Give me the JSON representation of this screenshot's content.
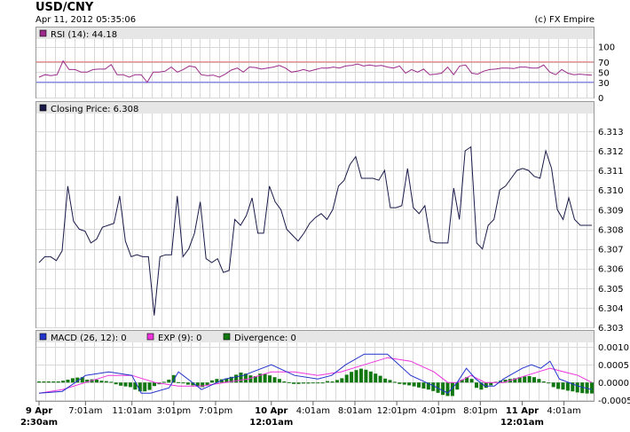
{
  "header": {
    "title": "USD/CNY",
    "date": "Apr 11, 2012 05:35:06",
    "copyright": "(c) FX Empire"
  },
  "colors": {
    "price_line": "#1a1a4a",
    "rsi_line": "#9b2a8a",
    "rsi_high_line": "#e06666",
    "rsi_low_line": "#6666ee",
    "macd_line": "#2233cc",
    "exp_line": "#ee33dd",
    "divergence": "#117711",
    "panel_header_bg": "#e6e6e6",
    "grid": "#d8d8d8"
  },
  "chart_data": [
    {
      "type": "line",
      "panel": "rsi",
      "legend": "RSI (14): 44.18",
      "legend_swatch": "#9b2a8a",
      "yticks": [
        "100",
        "70",
        "50",
        "30",
        "0"
      ],
      "ytick_values": [
        100,
        70,
        50,
        30,
        0
      ],
      "ylim": [
        0,
        115
      ],
      "reference_lines": [
        70,
        30
      ],
      "values": [
        40,
        45,
        43,
        45,
        72,
        55,
        55,
        50,
        50,
        55,
        56,
        56,
        65,
        45,
        45,
        40,
        45,
        45,
        30,
        50,
        50,
        52,
        60,
        50,
        55,
        62,
        60,
        45,
        43,
        44,
        40,
        46,
        54,
        58,
        50,
        60,
        59,
        56,
        58,
        60,
        63,
        58,
        50,
        52,
        55,
        52,
        55,
        58,
        58,
        60,
        58,
        62,
        63,
        66,
        62,
        64,
        62,
        63,
        60,
        58,
        62,
        48,
        55,
        50,
        56,
        45,
        46,
        48,
        60,
        45,
        62,
        64,
        48,
        46,
        52,
        55,
        56,
        58,
        58,
        57,
        60,
        60,
        58,
        58,
        64,
        50,
        45,
        55,
        48,
        45,
        46,
        45,
        44
      ]
    },
    {
      "type": "line",
      "panel": "price",
      "legend": "Closing Price: 6.308",
      "legend_swatch": "#1a1a4a",
      "yticks": [
        "6.313",
        "6.312",
        "6.311",
        "6.310",
        "6.309",
        "6.308",
        "6.307",
        "6.306",
        "6.305",
        "6.304",
        "6.303"
      ],
      "ylim": [
        6.303,
        6.3139
      ],
      "values": [
        6.3063,
        6.3066,
        6.3066,
        6.3064,
        6.3069,
        6.3102,
        6.3084,
        6.308,
        6.3079,
        6.3073,
        6.3075,
        6.3081,
        6.3082,
        6.3083,
        6.3097,
        6.3074,
        6.3066,
        6.3067,
        6.3066,
        6.3066,
        6.3036,
        6.3066,
        6.3067,
        6.3067,
        6.3097,
        6.3066,
        6.307,
        6.3078,
        6.3094,
        6.3065,
        6.3063,
        6.3065,
        6.3058,
        6.3059,
        6.3085,
        6.3082,
        6.3087,
        6.3096,
        6.3078,
        6.3078,
        6.3102,
        6.3094,
        6.309,
        6.308,
        6.3077,
        6.3074,
        6.3078,
        6.3083,
        6.3086,
        6.3088,
        6.3085,
        6.309,
        6.3102,
        6.3105,
        6.3113,
        6.3117,
        6.3106,
        6.3106,
        6.3106,
        6.3105,
        6.311,
        6.3091,
        6.3091,
        6.3092,
        6.3111,
        6.3091,
        6.3088,
        6.3092,
        6.3074,
        6.3073,
        6.3073,
        6.3073,
        6.3101,
        6.3085,
        6.312,
        6.3122,
        6.3073,
        6.307,
        6.3082,
        6.3085,
        6.31,
        6.3102,
        6.3106,
        6.311,
        6.3111,
        6.311,
        6.3107,
        6.3106,
        6.312,
        6.3111,
        6.309,
        6.3085,
        6.3096,
        6.3085,
        6.3082,
        6.3082,
        6.3082
      ]
    },
    {
      "type": "line",
      "panel": "macd",
      "legend_items": [
        {
          "label": "MACD (26, 12): 0",
          "color": "#2233cc"
        },
        {
          "label": "EXP (9): 0",
          "color": "#ee33dd"
        },
        {
          "label": "Divergence: 0",
          "color": "#117711"
        }
      ],
      "yticks": [
        "0.0010",
        "0.0005",
        "0.0000",
        "-0.0005"
      ],
      "ytick_values": [
        0.001,
        0.0005,
        0.0,
        -0.0005
      ],
      "ylim": [
        -0.00052,
        0.00113
      ],
      "x_ticks": [
        {
          "line1": "9 Apr",
          "line2": "2:30am",
          "bold": true,
          "index": 0
        },
        {
          "line1": "7:01am",
          "line2": "",
          "bold": false,
          "index": 10
        },
        {
          "line1": "11:01am",
          "line2": "",
          "bold": false,
          "index": 20
        },
        {
          "line1": "3:01pm",
          "line2": "",
          "bold": false,
          "index": 29
        },
        {
          "line1": "7:01pm",
          "line2": "",
          "bold": false,
          "index": 38
        },
        {
          "line1": "10 Apr",
          "line2": "12:01am",
          "bold": true,
          "index": 50
        },
        {
          "line1": "4:01am",
          "line2": "",
          "bold": false,
          "index": 59
        },
        {
          "line1": "8:01am",
          "line2": "",
          "bold": false,
          "index": 68
        },
        {
          "line1": "12:01pm",
          "line2": "",
          "bold": false,
          "index": 77
        },
        {
          "line1": "4:01pm",
          "line2": "",
          "bold": false,
          "index": 86
        },
        {
          "line1": "8:01pm",
          "line2": "",
          "bold": false,
          "index": 95
        },
        {
          "line1": "11 Apr",
          "line2": "12:01am",
          "bold": true,
          "index": 104
        },
        {
          "line1": "4:01am",
          "line2": "",
          "bold": false,
          "index": 113
        }
      ],
      "macd_x": [
        0,
        5,
        10,
        15,
        20,
        22,
        24,
        28,
        30,
        35,
        40,
        44,
        50,
        55,
        60,
        63,
        66,
        70,
        75,
        80,
        85,
        88,
        90,
        92,
        94,
        96,
        98,
        100,
        104,
        106,
        108,
        110,
        112,
        116,
        119
      ],
      "macd": [
        -0.0003,
        -0.00025,
        0.0002,
        0.0003,
        0.0002,
        -0.0003,
        -0.0003,
        -0.00015,
        0.0003,
        -0.0002,
        0.0001,
        0.0002,
        0.0005,
        0.0002,
        0.0001,
        0.0002,
        0.0005,
        0.0008,
        0.0008,
        0.0002,
        -0.0001,
        -0.0003,
        0.0,
        0.0004,
        0.0001,
        -0.0001,
        -0.0001,
        0.0001,
        0.0004,
        0.0005,
        0.0004,
        0.0006,
        0.0001,
        -0.0001,
        -0.0002
      ],
      "exp_x": [
        0,
        5,
        10,
        15,
        20,
        25,
        30,
        35,
        40,
        45,
        50,
        55,
        60,
        65,
        70,
        75,
        80,
        85,
        88,
        90,
        93,
        96,
        100,
        105,
        110,
        116,
        119
      ],
      "exp": [
        -0.0003,
        -0.0002,
        0.0,
        0.0002,
        0.0002,
        0.0,
        -0.0001,
        -0.0001,
        0.0,
        0.0001,
        0.0003,
        0.0003,
        0.0002,
        0.0003,
        0.0005,
        0.0007,
        0.0006,
        0.0003,
        0.0,
        0.0,
        0.0002,
        0.0,
        0.0,
        0.0002,
        0.0004,
        0.0002,
        0.0
      ],
      "divergence": [
        3e-05,
        3e-05,
        3e-05,
        3e-05,
        3e-05,
        5e-05,
        8e-05,
        0.00012,
        0.00014,
        0.00015,
        8e-05,
        9e-05,
        8e-05,
        5e-05,
        4e-05,
        2e-05,
        -5e-05,
        -9e-05,
        -0.00011,
        -0.00013,
        -0.0002,
        -0.00025,
        -0.00025,
        -0.00021,
        -0.0001,
        -5e-05,
        2e-05,
        8e-05,
        0.00021,
        1e-05,
        -1e-05,
        -6e-05,
        -8e-05,
        -0.00011,
        -0.00013,
        -8e-05,
        6e-05,
        0.0001,
        9e-05,
        0.00011,
        0.00016,
        0.00022,
        0.00028,
        0.00025,
        0.0002,
        0.00018,
        0.00025,
        0.00024,
        0.0002,
        0.00015,
        0.0001,
        3e-05,
        1e-05,
        -4e-05,
        -4e-05,
        -3e-05,
        -3e-05,
        -2e-05,
        -2e-05,
        -1e-05,
        4e-05,
        3e-05,
        7e-05,
        0.00012,
        0.00022,
        0.0003,
        0.00035,
        0.00039,
        0.00036,
        0.00031,
        0.00025,
        0.00019,
        0.00011,
        7e-05,
        2e-05,
        -4e-05,
        -6e-05,
        -8e-05,
        -0.00011,
        -0.00014,
        -0.00017,
        -0.0002,
        -0.00024,
        -0.00029,
        -0.00035,
        -0.00038,
        -0.00038,
        -0.0002,
        8e-05,
        0.00015,
        0.0001,
        -0.00015,
        -0.0002,
        -0.00015,
        -8e-05,
        2e-05,
        5e-05,
        8e-05,
        0.0001,
        0.00012,
        0.00015,
        0.00017,
        0.00018,
        0.00015,
        0.0001,
        3e-05,
        -2e-05,
        -0.00013,
        -0.00018,
        -0.0002,
        -0.00023,
        -0.00025,
        -0.00028,
        -0.0003,
        -0.00031,
        -0.00031
      ]
    }
  ]
}
